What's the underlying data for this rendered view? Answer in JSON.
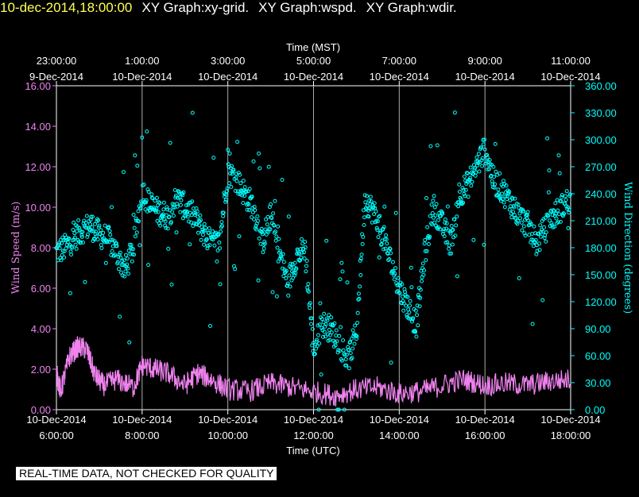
{
  "header": {
    "title_parts": [
      "10-dec-2014,18:00:00",
      "XY Graph:xy-grid.",
      "XY Graph:wspd.",
      "XY Graph:wdir."
    ]
  },
  "chart_data": {
    "type": "scatter",
    "x_axis_top": {
      "label": "Time (MST)",
      "ticks": [
        {
          "time": "23:00:00",
          "date": "9-Dec-2014"
        },
        {
          "time": "1:00:00",
          "date": "10-Dec-2014"
        },
        {
          "time": "3:00:00",
          "date": "10-Dec-2014"
        },
        {
          "time": "5:00:00",
          "date": "10-Dec-2014"
        },
        {
          "time": "7:00:00",
          "date": "10-Dec-2014"
        },
        {
          "time": "9:00:00",
          "date": "10-Dec-2014"
        },
        {
          "time": "11:00:00",
          "date": "10-Dec-2014"
        }
      ]
    },
    "x_axis_bottom": {
      "label": "Time (UTC)",
      "ticks": [
        {
          "date": "10-Dec-2014",
          "time": "6:00:00"
        },
        {
          "date": "10-Dec-2014",
          "time": "8:00:00"
        },
        {
          "date": "10-Dec-2014",
          "time": "10:00:00"
        },
        {
          "date": "10-Dec-2014",
          "time": "12:00:00"
        },
        {
          "date": "10-Dec-2014",
          "time": "14:00:00"
        },
        {
          "date": "10-Dec-2014",
          "time": "16:00:00"
        },
        {
          "date": "10-Dec-2014",
          "time": "18:00:00"
        }
      ],
      "range_hours_utc": [
        6,
        18
      ]
    },
    "y_axis_left": {
      "label": "Wind Speed (m/s)",
      "range": [
        0,
        16
      ],
      "ticks": [
        "0.00",
        "2.00",
        "4.00",
        "6.00",
        "8.00",
        "10.00",
        "12.00",
        "14.00",
        "16.00"
      ],
      "color": "#ee82ee"
    },
    "y_axis_right": {
      "label": "Wind Direction (degrees)",
      "range": [
        0,
        360
      ],
      "ticks": [
        "0.00",
        "30.00",
        "60.00",
        "90.00",
        "120.00",
        "150.00",
        "180.00",
        "210.00",
        "240.00",
        "270.00",
        "300.00",
        "330.00",
        "360.00"
      ],
      "color": "#00ffff"
    },
    "grid": "vertical at major x ticks",
    "series": [
      {
        "name": "wspd",
        "kind": "line",
        "axis": "left",
        "color": "#ee82ee",
        "x_hours_utc": [
          6.0,
          6.1,
          6.3,
          6.5,
          6.7,
          6.9,
          7.1,
          7.4,
          7.8,
          8.0,
          8.3,
          8.6,
          9.0,
          9.3,
          9.6,
          10.0,
          10.5,
          11.0,
          11.5,
          12.0,
          12.5,
          13.0,
          13.5,
          14.0,
          14.5,
          15.0,
          15.5,
          16.0,
          16.5,
          17.0,
          17.5,
          18.0
        ],
        "y": [
          1.8,
          0.9,
          2.6,
          3.1,
          3.0,
          1.7,
          1.2,
          1.5,
          1.1,
          2.2,
          2.0,
          1.8,
          1.2,
          1.8,
          1.5,
          1.0,
          0.9,
          1.3,
          1.1,
          0.9,
          0.7,
          1.0,
          1.1,
          0.8,
          0.9,
          1.2,
          1.5,
          1.2,
          1.3,
          1.2,
          1.4,
          1.5
        ]
      },
      {
        "name": "wdir",
        "kind": "scatter",
        "axis": "right",
        "color": "#00ffff",
        "x_hours_utc": [
          6.0,
          6.2,
          6.4,
          6.6,
          6.8,
          7.0,
          7.2,
          7.4,
          7.6,
          7.8,
          8.0,
          8.2,
          8.4,
          8.6,
          8.8,
          9.0,
          9.2,
          9.4,
          9.6,
          9.8,
          10.0,
          10.2,
          10.4,
          10.6,
          10.8,
          11.0,
          11.2,
          11.4,
          11.6,
          11.8,
          12.0,
          12.2,
          12.4,
          12.6,
          12.8,
          13.0,
          13.2,
          13.4,
          13.6,
          13.8,
          14.0,
          14.2,
          14.4,
          14.6,
          14.8,
          15.0,
          15.2,
          15.4,
          15.6,
          15.8,
          16.0,
          16.2,
          16.4,
          16.6,
          16.8,
          17.0,
          17.2,
          17.4,
          17.6,
          17.8,
          18.0
        ],
        "y": [
          175,
          180,
          190,
          200,
          205,
          195,
          190,
          175,
          155,
          180,
          245,
          225,
          220,
          215,
          235,
          225,
          215,
          200,
          185,
          185,
          265,
          255,
          240,
          225,
          185,
          215,
          175,
          140,
          170,
          180,
          65,
          95,
          90,
          75,
          55,
          85,
          235,
          220,
          195,
          165,
          135,
          115,
          95,
          175,
          225,
          205,
          185,
          240,
          250,
          270,
          290,
          255,
          245,
          230,
          215,
          205,
          185,
          200,
          215,
          225,
          235
        ]
      }
    ]
  },
  "footer": {
    "note": "REAL-TIME DATA, NOT CHECKED FOR QUALITY"
  }
}
